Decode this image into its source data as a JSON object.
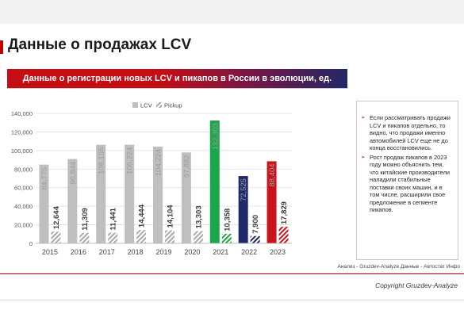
{
  "page": {
    "title": "Данные о продажах LCV",
    "banner": "Данные о регистрации новых LCV и пикапов в России в эволюции, ед.",
    "source": "Анализ - Gruzdev-Analyze Данные - Автостат Инфо",
    "copyright": "Copyright Gruzdev-Analyze"
  },
  "notes": [
    "Если рассматривать продажи LCV и пикапов отдельно, то видно, что продажи именно автомобилей LCV еще не до конца восстановились.",
    "Рост продаж пикапов в 2023 году можно объяснить тем, что китайские производители наладили стабильные поставки своих машин, и в том числе, расширили свое предложение в сегменте пикапов."
  ],
  "colors": {
    "lcv_default": "#bfbfbf",
    "lcv_2021": "#1aa64a",
    "lcv_2022": "#1f2a6b",
    "lcv_2023": "#c9141b",
    "pickup_default": "#b0b0b0",
    "accent": "#c00000"
  },
  "chart_data": {
    "type": "bar",
    "title": "",
    "xlabel": "",
    "ylabel": "",
    "ylim": [
      0,
      140000
    ],
    "yticks": [
      0,
      20000,
      40000,
      60000,
      80000,
      100000,
      120000,
      140000
    ],
    "ytick_labels": [
      "0",
      "20,000",
      "40,000",
      "60,000",
      "80,000",
      "100,000",
      "120,000",
      "140,000"
    ],
    "categories": [
      "2015",
      "2016",
      "2017",
      "2018",
      "2019",
      "2020",
      "2021",
      "2022",
      "2023"
    ],
    "grid": true,
    "legend_position": "top-left",
    "series": [
      {
        "name": "LCV",
        "values": [
          84775,
          90844,
          106155,
          106224,
          104224,
          97882,
          132303,
          72525,
          88404
        ],
        "labels": [
          "84,775",
          "90,844",
          "106,155",
          "106,224",
          "104,224",
          "97,882",
          "132,303",
          "72,525",
          "88,404"
        ]
      },
      {
        "name": "Pickup",
        "pattern": "hatched",
        "values": [
          12644,
          11309,
          11441,
          14444,
          14104,
          13303,
          10358,
          7900,
          17829
        ],
        "labels": [
          "12,644",
          "11,309",
          "11,441",
          "14,444",
          "14,104",
          "13,303",
          "10,358",
          "7,900",
          "17,829"
        ]
      }
    ]
  }
}
